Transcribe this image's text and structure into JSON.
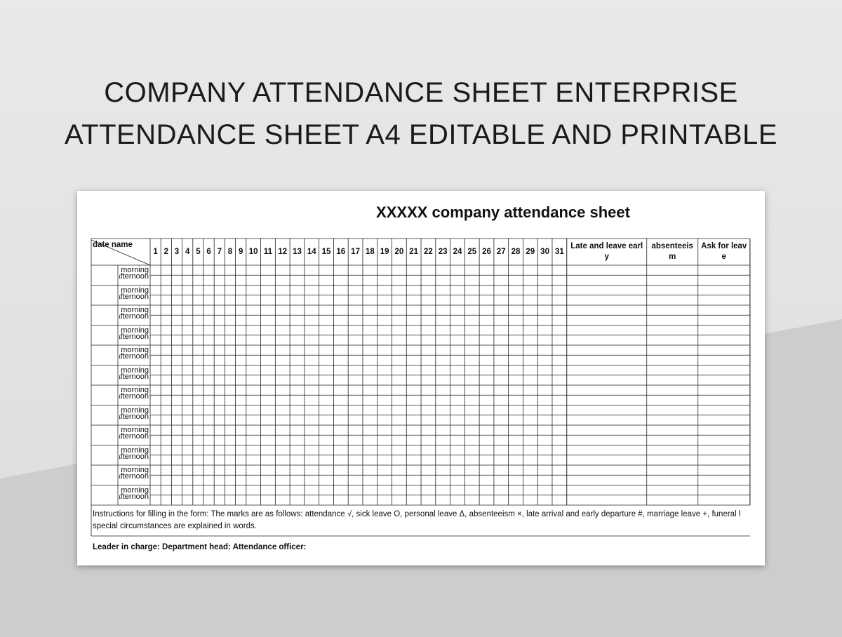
{
  "header": {
    "title_lines": [
      "COMPANY ATTENDANCE SHEET ENTERPRISE",
      "ATTENDANCE SHEET A4 EDITABLE AND PRINTABLE"
    ]
  },
  "sheet": {
    "title": "XXXXX company attendance sheet",
    "table": {
      "corner": "date name",
      "days": [
        1,
        2,
        3,
        4,
        5,
        6,
        7,
        8,
        9,
        10,
        11,
        12,
        13,
        14,
        15,
        16,
        17,
        18,
        19,
        20,
        21,
        22,
        23,
        24,
        25,
        26,
        27,
        28,
        29,
        30,
        31
      ],
      "extra_columns": [
        "Late and leave early",
        "absenteeism",
        "Ask for leave"
      ],
      "rows": [
        [
          "morning",
          "afternoon"
        ],
        [
          "morning",
          "afternoon"
        ],
        [
          "morning",
          "afternoon"
        ],
        [
          "morning",
          "afternoon"
        ],
        [
          "morning",
          "afternoon"
        ],
        [
          "morning",
          "afternoon"
        ],
        [
          "morning",
          "afternoon"
        ],
        [
          "morning",
          "afternoon"
        ],
        [
          "morning",
          "afternoon"
        ],
        [
          "morning",
          "afternoon"
        ],
        [
          "morning",
          "afternoon"
        ],
        [
          "morning",
          "afternoon"
        ]
      ]
    },
    "instructions": [
      "Instructions for filling in the form: The marks are as follows: attendance √, sick leave O, personal leave Δ, absenteeism ×, late arrival and early departure #, marriage leave +, funeral l",
      "special circumstances are explained in words."
    ],
    "footer": "Leader in charge: Department head: Attendance officer:"
  }
}
